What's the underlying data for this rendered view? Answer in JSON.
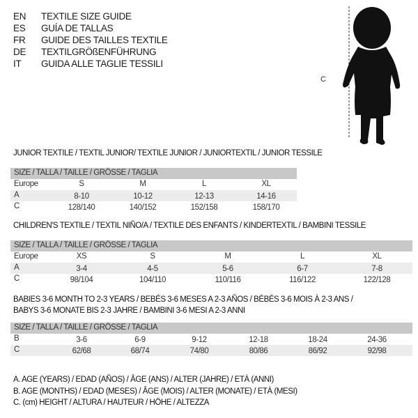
{
  "languages": [
    {
      "code": "EN",
      "text": "TEXTILE SIZE GUIDE"
    },
    {
      "code": "ES",
      "text": "GUÍA DE TALLAS"
    },
    {
      "code": "FR",
      "text": "GUIDE DES TAILLES TEXTILE"
    },
    {
      "code": "DE",
      "text": "TEXTILGRÖßENFÜHRUNG"
    },
    {
      "code": "IT",
      "text": "GUIDA ALLE TAGLIE TESSILI"
    }
  ],
  "figure": {
    "height_label": "C"
  },
  "tables": [
    {
      "title": "JUNIOR TEXTILE / TEXTIL JUNIOR/ TEXTILE JUNIOR / JUNIORTEXTIL / JUNIOR TESSILE",
      "header": "SIZE / TALLA / TAILLE / GRÖSSE / TAGLIA",
      "rows": [
        {
          "label": "Europe",
          "cells": [
            "S",
            "M",
            "L",
            "XL"
          ]
        },
        {
          "label": "A",
          "cells": [
            "8-10",
            "10-12",
            "12-13",
            "14-16"
          ]
        },
        {
          "label": "C",
          "cells": [
            "128/140",
            "140/152",
            "152/158",
            "158/170"
          ]
        }
      ]
    },
    {
      "title": "CHILDREN'S TEXTILE / TEXTIL NIÑO/A / TEXTILE DES ENFANTS / KINDERTEXTIL / BAMBINI TESSILE",
      "header": "SIZE / TALLA / TAILLE / GRÖSSE / TAGLIA",
      "rows": [
        {
          "label": "Europe",
          "cells": [
            "XS",
            "S",
            "M",
            "L",
            "XL"
          ]
        },
        {
          "label": "A",
          "cells": [
            "3-4",
            "4-5",
            "5-6",
            "6-7",
            "7-8"
          ]
        },
        {
          "label": "C",
          "cells": [
            "98/104",
            "104/110",
            "110/116",
            "116/122",
            "122/128"
          ]
        }
      ]
    },
    {
      "title": "BABIES 3-6 MONTH TO 2-3 YEARS / BEBÉS 3-6 MESES A 2-3 AÑOS / BÉBÉS 3-6 MOIS À 2-3 ANS /",
      "title2": "BABYS 3-6 MONATE BIS 2-3 JAHRE / BAMBINI 3-6 MESI A 2-3 ANNI",
      "header": "SIZE / TALLA / TAILLE / GRÖSSE / TAGLIA",
      "rows": [
        {
          "label": "B",
          "cells": [
            "3-6",
            "6-9",
            "9-12",
            "12-18",
            "18-24",
            "24-36"
          ]
        },
        {
          "label": "C",
          "cells": [
            "62/68",
            "68/74",
            "74/80",
            "80/86",
            "86/92",
            "92/98"
          ]
        }
      ]
    }
  ],
  "legend": [
    "A. AGE (YEARS) / EDAD (AÑOS) / ÂGE (ANS) / ALTER (JAHRE) / ETÀ (ANNI)",
    "B. AGE (MONTHS) / EDAD (MESES) / ÂGE (MOIS) / ALTER (MONATE) / ETÀ (MESI)",
    "C. (cm) HEIGHT / ALTURA / HAUTEUR / HÖHE / ALTEZZA"
  ]
}
